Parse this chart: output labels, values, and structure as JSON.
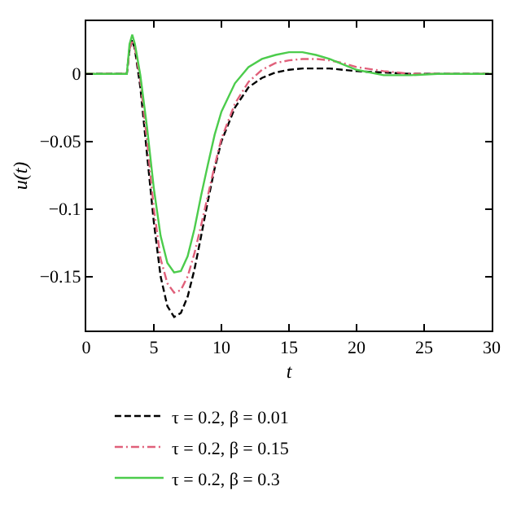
{
  "chart_data": {
    "type": "line",
    "xlabel": "t",
    "ylabel": "u(t)",
    "x": [
      0,
      3,
      3.2,
      3.4,
      3.6,
      4,
      4.5,
      5,
      5.5,
      6,
      6.5,
      7,
      7.5,
      8,
      8.5,
      9,
      9.5,
      10,
      11,
      12,
      13,
      14,
      15,
      16,
      17,
      18,
      19,
      20,
      22,
      24,
      26,
      28,
      30
    ],
    "series": [
      {
        "name": "τ = 0.2, β = 0.01",
        "color": "#000000",
        "line_style": "dashed",
        "values": [
          0,
          0,
          0.018,
          0.025,
          0.018,
          -0.01,
          -0.06,
          -0.11,
          -0.15,
          -0.172,
          -0.18,
          -0.177,
          -0.165,
          -0.145,
          -0.12,
          -0.094,
          -0.07,
          -0.05,
          -0.025,
          -0.01,
          -0.003,
          0.001,
          0.003,
          0.004,
          0.004,
          0.004,
          0.003,
          0.002,
          0.001,
          0,
          0,
          0,
          0
        ]
      },
      {
        "name": "τ = 0.2, β = 0.15",
        "color": "#e0607a",
        "line_style": "dashdot",
        "values": [
          0,
          0,
          0.018,
          0.025,
          0.019,
          -0.005,
          -0.05,
          -0.1,
          -0.137,
          -0.155,
          -0.162,
          -0.16,
          -0.15,
          -0.133,
          -0.112,
          -0.09,
          -0.068,
          -0.048,
          -0.022,
          -0.006,
          0.003,
          0.008,
          0.01,
          0.011,
          0.011,
          0.01,
          0.008,
          0.005,
          0.002,
          0,
          0,
          0,
          0
        ]
      },
      {
        "name": "τ = 0.2, β = 0.3",
        "color": "#4ccc4c",
        "line_style": "solid",
        "values": [
          0,
          0,
          0.022,
          0.029,
          0.022,
          -0.001,
          -0.04,
          -0.085,
          -0.12,
          -0.14,
          -0.147,
          -0.146,
          -0.135,
          -0.115,
          -0.09,
          -0.067,
          -0.045,
          -0.028,
          -0.007,
          0.005,
          0.011,
          0.014,
          0.016,
          0.016,
          0.014,
          0.011,
          0.007,
          0.003,
          -0.001,
          -0.001,
          0,
          0,
          0
        ]
      }
    ],
    "xlim": [
      0,
      30
    ],
    "xticks": [
      0,
      5,
      10,
      15,
      20,
      25,
      30
    ],
    "ylim": [
      -0.19,
      0.039
    ],
    "yticks": [
      0,
      {
        "value": -0.05,
        "label": "−0.05"
      },
      {
        "value": -0.1,
        "label": "−0.1"
      },
      {
        "value": -0.15,
        "label": "−0.15"
      }
    ],
    "legend": "bottom",
    "marker": "none"
  }
}
